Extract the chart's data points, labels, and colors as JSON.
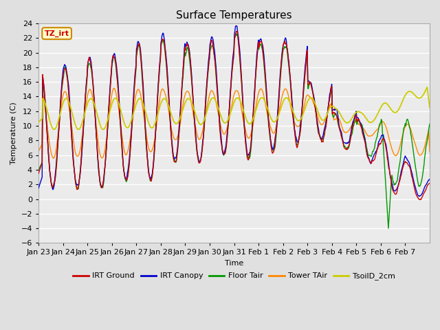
{
  "title": "Surface Temperatures",
  "xlabel": "Time",
  "ylabel": "Temperature (C)",
  "ylim": [
    -6,
    24
  ],
  "yticks": [
    -6,
    -4,
    -2,
    0,
    2,
    4,
    6,
    8,
    10,
    12,
    14,
    16,
    18,
    20,
    22,
    24
  ],
  "xtick_labels": [
    "Jan 23",
    "Jan 24",
    "Jan 25",
    "Jan 26",
    "Jan 27",
    "Jan 28",
    "Jan 29",
    "Jan 30",
    "Jan 31",
    "Feb 1",
    "Feb 2",
    "Feb 3",
    "Feb 4",
    "Feb 5",
    "Feb 6",
    "Feb 7"
  ],
  "legend_labels": [
    "IRT Ground",
    "IRT Canopy",
    "Floor Tair",
    "Tower TAir",
    "TsoilD_2cm"
  ],
  "legend_colors": [
    "#cc0000",
    "#0000cc",
    "#009900",
    "#ff8800",
    "#cccc00"
  ],
  "annotation_text": "TZ_irt",
  "annotation_color": "#cc0000",
  "annotation_bg": "#ffffcc",
  "annotation_border": "#cc8800",
  "title_fontsize": 11,
  "label_fontsize": 8,
  "tick_fontsize": 8,
  "fig_bg": "#e0e0e0",
  "ax_bg": "#ebebeb",
  "day_peaks": [
    18,
    18,
    19,
    19.5,
    21,
    22,
    21,
    21.5,
    23,
    21.5,
    21.5,
    16,
    12,
    11,
    11.5,
    11
  ],
  "day_troughs": [
    1.5,
    1.5,
    1.5,
    2.5,
    2.5,
    5,
    5,
    6,
    5.5,
    6.5,
    7.5,
    8,
    7,
    6,
    2,
    2
  ]
}
